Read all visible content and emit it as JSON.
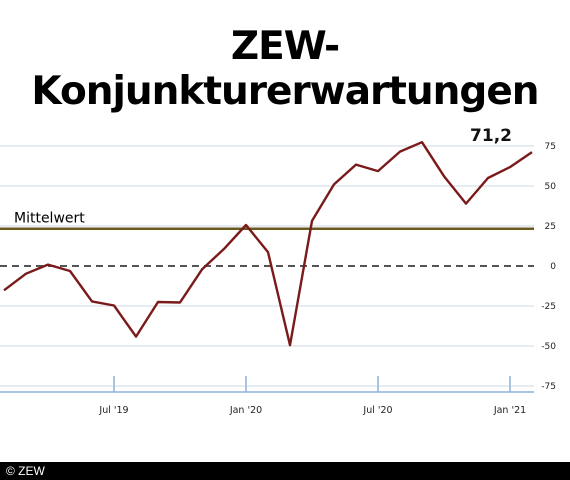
{
  "title": "ZEW-Konjunkturerwartungen",
  "copyright": "© ZEW",
  "colors": {
    "series": "#7a1a1a",
    "mean_line": "#6b5a1e",
    "zero_line": "#555555",
    "grid": "#cfd8e6",
    "axis": "#8fb0d8"
  },
  "chart_data": {
    "type": "line",
    "title": "ZEW-Konjunkturerwartungen",
    "x": [
      "2019-02",
      "2019-03",
      "2019-04",
      "2019-05",
      "2019-06",
      "2019-07",
      "2019-08",
      "2019-09",
      "2019-10",
      "2019-11",
      "2019-12",
      "2020-01",
      "2020-02",
      "2020-03",
      "2020-04",
      "2020-05",
      "2020-06",
      "2020-07",
      "2020-08",
      "2020-09",
      "2020-10",
      "2020-11",
      "2020-12",
      "2021-01",
      "2021-02"
    ],
    "series": [
      {
        "values": [
          -15.2,
          -4.8,
          0.9,
          -3.1,
          -22.1,
          -24.7,
          -44.1,
          -22.5,
          -22.8,
          -2.1,
          10.7,
          25.6,
          8.7,
          -49.5,
          28.2,
          51.0,
          63.4,
          59.3,
          71.5,
          77.4,
          56.1,
          39.0,
          55.0,
          61.8,
          71.2
        ]
      }
    ],
    "end_label": "71,2",
    "reference_line": {
      "label": "Mittelwert",
      "value": 23.3
    },
    "zero_line": {
      "value": 0,
      "style": "dashed"
    },
    "yticks": [
      75,
      50,
      25,
      0,
      -25,
      -50,
      -75
    ],
    "ytick_labels": [
      "75",
      "50",
      "25",
      "0",
      "-25",
      "-50",
      "-75"
    ],
    "xticks": [
      {
        "label": "Jul '19",
        "x": "2019-07"
      },
      {
        "label": "Jan '20",
        "x": "2020-01"
      },
      {
        "label": "Jul '20",
        "x": "2020-07"
      },
      {
        "label": "Jan '21",
        "x": "2021-01"
      }
    ],
    "ylim": [
      -75,
      75
    ],
    "xlim": [
      "2019-02",
      "2021-02"
    ],
    "grid": true
  }
}
